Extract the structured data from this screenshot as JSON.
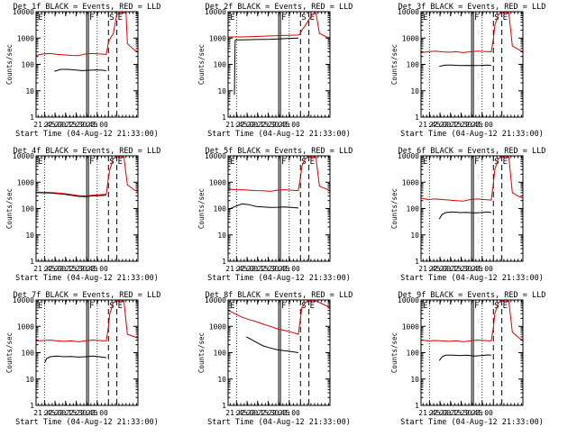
{
  "figure": {
    "common": {
      "ylabel": "Counts/sec",
      "xlabel": "Start Time (04-Aug-12 21:33:00)",
      "xtick_labels": [
        "21:45",
        "22:00",
        "22:15",
        "22:30",
        "22:45",
        "23:00"
      ],
      "ytick_labels": [
        "1",
        "10",
        "100",
        "1000",
        "10000"
      ],
      "marker_labels": {
        "e": "E",
        "f": "F",
        "s": "S"
      },
      "colors": {
        "events": "#000000",
        "lld": "#e00000"
      }
    }
  },
  "chart_data": [
    {
      "type": "line",
      "title": "Det 1f BLACK = Events, RED = LLD",
      "xlabel": "Start Time (04-Aug-12 21:33:00)",
      "ylabel": "Counts/sec",
      "ylim": [
        1,
        10000
      ],
      "yscale": "log",
      "x_unit": "minutes after 21:33:00",
      "series": [
        {
          "name": "Events",
          "color": "black",
          "x": [
            26,
            35,
            45,
            55,
            65,
            75,
            85,
            95,
            100
          ],
          "y": [
            55,
            65,
            65,
            62,
            58,
            60,
            62,
            60,
            58
          ]
        },
        {
          "name": "LLD",
          "color": "red",
          "x": [
            0,
            10,
            20,
            30,
            40,
            50,
            60,
            70,
            80,
            90,
            100,
            103,
            105,
            110,
            115,
            120,
            125,
            128,
            130,
            140,
            145
          ],
          "y": [
            220,
            250,
            260,
            240,
            230,
            220,
            215,
            250,
            260,
            250,
            240,
            700,
            900,
            1500,
            8000,
            9000,
            9000,
            9000,
            600,
            350,
            300
          ]
        }
      ],
      "markers": {
        "e": [
          0,
          88
        ],
        "f": [
          72,
          73
        ],
        "s": [
          103
        ]
      }
    },
    {
      "type": "line",
      "title": "Det 2f BLACK = Events, RED = LLD",
      "xlabel": "Start Time (04-Aug-12 21:33:00)",
      "ylabel": "Counts/sec",
      "ylim": [
        1,
        10000
      ],
      "yscale": "log",
      "x_unit": "minutes after 21:33:00",
      "series": [
        {
          "name": "Events",
          "color": "black",
          "x": [
            9,
            10,
            11,
            20,
            40,
            60,
            80,
            100
          ],
          "y": [
            7,
            800,
            850,
            850,
            880,
            900,
            950,
            1000
          ]
        },
        {
          "name": "LLD",
          "color": "red",
          "x": [
            0,
            20,
            40,
            60,
            80,
            100,
            103,
            105,
            110,
            115,
            120,
            125,
            130,
            140,
            145
          ],
          "y": [
            1100,
            1100,
            1150,
            1200,
            1250,
            1300,
            1500,
            2000,
            3000,
            5000,
            8000,
            9000,
            1500,
            1100,
            1050
          ]
        }
      ],
      "markers": {
        "e": [
          0,
          88
        ],
        "f": [
          72,
          73
        ],
        "s": [
          103
        ]
      }
    },
    {
      "type": "line",
      "title": "Det 3f BLACK = Events, RED = LLD",
      "xlabel": "Start Time (04-Aug-12 21:33:00)",
      "ylabel": "Counts/sec",
      "ylim": [
        1,
        10000
      ],
      "yscale": "log",
      "x_unit": "minutes after 21:33:00",
      "series": [
        {
          "name": "Events",
          "color": "black",
          "x": [
            26,
            35,
            45,
            55,
            65,
            75,
            85,
            95,
            100
          ],
          "y": [
            85,
            95,
            95,
            90,
            92,
            90,
            92,
            95,
            90
          ]
        },
        {
          "name": "LLD",
          "color": "red",
          "x": [
            0,
            10,
            20,
            30,
            40,
            50,
            60,
            70,
            80,
            90,
            100,
            103,
            105,
            110,
            115,
            125,
            130,
            140,
            145
          ],
          "y": [
            280,
            300,
            320,
            300,
            290,
            300,
            280,
            300,
            320,
            310,
            300,
            900,
            3000,
            8000,
            9000,
            9000,
            500,
            350,
            300
          ]
        }
      ],
      "markers": {
        "e": [
          0,
          88
        ],
        "f": [
          72,
          73
        ],
        "s": [
          103
        ]
      }
    },
    {
      "type": "line",
      "title": "Det 4f BLACK = Events, RED = LLD",
      "xlabel": "Start Time (04-Aug-12 21:33:00)",
      "ylabel": "Counts/sec",
      "ylim": [
        1,
        10000
      ],
      "yscale": "log",
      "x_unit": "minutes after 21:33:00",
      "series": [
        {
          "name": "Events",
          "color": "black",
          "x": [
            0,
            20,
            40,
            60,
            70,
            80,
            90,
            100
          ],
          "y": [
            400,
            390,
            350,
            290,
            280,
            300,
            310,
            320
          ]
        },
        {
          "name": "LLD",
          "color": "red",
          "x": [
            0,
            20,
            40,
            60,
            70,
            80,
            90,
            100,
            103,
            105,
            110,
            115,
            125,
            130,
            140,
            145
          ],
          "y": [
            420,
            410,
            370,
            310,
            300,
            320,
            330,
            350,
            1500,
            3000,
            8000,
            9000,
            9000,
            800,
            500,
            450
          ]
        }
      ],
      "markers": {
        "e": [
          0,
          88
        ],
        "f": [
          72,
          73
        ],
        "s": [
          103
        ]
      }
    },
    {
      "type": "line",
      "title": "Det 5f BLACK = Events, RED = LLD",
      "xlabel": "Start Time (04-Aug-12 21:33:00)",
      "ylabel": "Counts/sec",
      "ylim": [
        1,
        10000
      ],
      "yscale": "log",
      "x_unit": "minutes after 21:33:00",
      "series": [
        {
          "name": "Events",
          "color": "black",
          "x": [
            0,
            10,
            20,
            30,
            40,
            50,
            60,
            70,
            80,
            90,
            100
          ],
          "y": [
            90,
            120,
            150,
            140,
            120,
            115,
            110,
            112,
            115,
            110,
            105
          ]
        },
        {
          "name": "LLD",
          "color": "red",
          "x": [
            0,
            10,
            20,
            30,
            40,
            50,
            60,
            70,
            80,
            90,
            100,
            103,
            105,
            110,
            115,
            125,
            130,
            140,
            145
          ],
          "y": [
            550,
            520,
            520,
            500,
            480,
            470,
            450,
            500,
            520,
            500,
            480,
            1500,
            4000,
            8000,
            9000,
            9000,
            700,
            550,
            450
          ]
        }
      ],
      "markers": {
        "e": [
          0,
          88
        ],
        "f": [
          72,
          73
        ],
        "s": [
          103
        ]
      }
    },
    {
      "type": "line",
      "title": "Det 6f BLACK = Events, RED = LLD",
      "xlabel": "Start Time (04-Aug-12 21:33:00)",
      "ylabel": "Counts/sec",
      "ylim": [
        1,
        10000
      ],
      "yscale": "log",
      "x_unit": "minutes after 21:33:00",
      "series": [
        {
          "name": "Events",
          "color": "black",
          "x": [
            26,
            30,
            35,
            45,
            55,
            65,
            75,
            85,
            95,
            100
          ],
          "y": [
            40,
            60,
            70,
            75,
            70,
            72,
            68,
            70,
            75,
            70
          ]
        },
        {
          "name": "LLD",
          "color": "red",
          "x": [
            0,
            10,
            20,
            30,
            40,
            50,
            60,
            70,
            80,
            90,
            100,
            103,
            105,
            110,
            115,
            125,
            130,
            140,
            145
          ],
          "y": [
            250,
            220,
            230,
            220,
            210,
            200,
            190,
            220,
            230,
            220,
            210,
            900,
            3000,
            8000,
            9000,
            9000,
            400,
            280,
            250
          ]
        }
      ],
      "markers": {
        "e": [
          0,
          88
        ],
        "f": [
          72,
          73
        ],
        "s": [
          103
        ]
      }
    },
    {
      "type": "line",
      "title": "Det 7f BLACK = Events, RED = LLD",
      "xlabel": "Start Time (04-Aug-12 21:33:00)",
      "ylabel": "Counts/sec",
      "ylim": [
        1,
        10000
      ],
      "yscale": "log",
      "x_unit": "minutes after 21:33:00",
      "series": [
        {
          "name": "Events",
          "color": "black",
          "x": [
            12,
            15,
            20,
            30,
            40,
            50,
            60,
            70,
            80,
            90,
            100
          ],
          "y": [
            40,
            60,
            70,
            75,
            70,
            72,
            68,
            70,
            75,
            70,
            65
          ]
        },
        {
          "name": "LLD",
          "color": "red",
          "x": [
            0,
            10,
            20,
            30,
            40,
            50,
            60,
            70,
            80,
            90,
            100,
            103,
            105,
            110,
            115,
            125,
            130,
            140,
            145
          ],
          "y": [
            280,
            290,
            300,
            280,
            270,
            280,
            260,
            280,
            300,
            290,
            280,
            1000,
            3000,
            8000,
            9000,
            9000,
            500,
            400,
            350
          ]
        }
      ],
      "markers": {
        "e": [
          0,
          88
        ],
        "f": [
          72,
          73
        ],
        "s": [
          103
        ]
      }
    },
    {
      "type": "line",
      "title": "Det 8f BLACK = Events, RED = LLD",
      "xlabel": "Start Time (04-Aug-12 21:33:00)",
      "ylabel": "Counts/sec",
      "ylim": [
        1,
        10000
      ],
      "yscale": "log",
      "x_unit": "minutes after 21:33:00",
      "series": [
        {
          "name": "Events",
          "color": "black",
          "x": [
            26,
            30,
            40,
            50,
            60,
            70,
            80,
            90,
            100
          ],
          "y": [
            400,
            350,
            250,
            180,
            150,
            130,
            120,
            110,
            100
          ]
        },
        {
          "name": "LLD",
          "color": "red",
          "x": [
            0,
            10,
            20,
            30,
            40,
            50,
            60,
            70,
            80,
            90,
            100,
            103,
            105,
            110,
            115,
            125,
            130,
            140,
            145
          ],
          "y": [
            4000,
            3000,
            2200,
            1800,
            1500,
            1200,
            1000,
            800,
            700,
            600,
            500,
            2000,
            5000,
            8000,
            9000,
            9000,
            8000,
            6000,
            5000
          ]
        }
      ],
      "markers": {
        "e": [
          0,
          88
        ],
        "f": [
          72,
          73
        ],
        "s": [
          103
        ]
      }
    },
    {
      "type": "line",
      "title": "Det 9f BLACK = Events, RED = LLD",
      "xlabel": "Start Time (04-Aug-12 21:33:00)",
      "ylabel": "Counts/sec",
      "ylim": [
        1,
        10000
      ],
      "yscale": "log",
      "x_unit": "minutes after 21:33:00",
      "series": [
        {
          "name": "Events",
          "color": "black",
          "x": [
            26,
            30,
            35,
            45,
            55,
            65,
            75,
            85,
            95,
            100
          ],
          "y": [
            50,
            70,
            80,
            80,
            78,
            80,
            75,
            78,
            82,
            80
          ]
        },
        {
          "name": "LLD",
          "color": "red",
          "x": [
            0,
            10,
            20,
            30,
            40,
            50,
            60,
            70,
            80,
            90,
            100,
            103,
            105,
            110,
            115,
            125,
            130,
            140,
            145
          ],
          "y": [
            300,
            280,
            290,
            280,
            270,
            280,
            260,
            280,
            300,
            290,
            280,
            900,
            3000,
            8000,
            9000,
            9000,
            600,
            350,
            300
          ]
        }
      ],
      "markers": {
        "e": [
          0,
          88
        ],
        "f": [
          72,
          73
        ],
        "s": [
          103
        ]
      }
    }
  ]
}
